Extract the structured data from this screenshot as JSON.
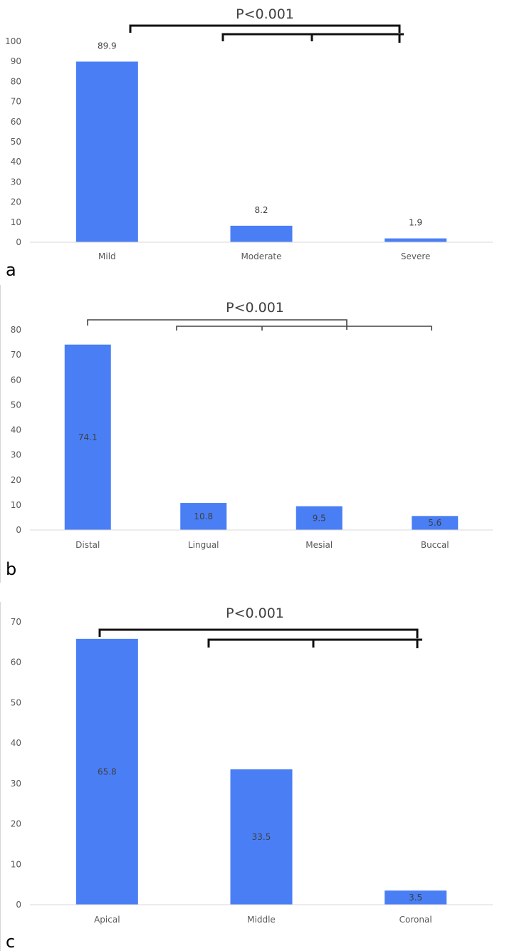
{
  "bar_color": "#4a7ef5",
  "chart_data": [
    {
      "panel_label": "a",
      "type": "bar",
      "categories": [
        "Mild",
        "Moderate",
        "Severe"
      ],
      "values": [
        89.9,
        8.2,
        1.9
      ],
      "value_labels": [
        "89.9",
        "8.2",
        "1.9"
      ],
      "value_label_position": "above",
      "ylim": [
        0,
        100
      ],
      "yticks": [
        0,
        10,
        20,
        30,
        40,
        50,
        60,
        70,
        80,
        90,
        100
      ],
      "ytick_labels": [
        "0",
        "10",
        "20",
        "30",
        "40",
        "50",
        "60",
        "70",
        "80",
        "90",
        "100"
      ],
      "grid": false,
      "annotation": "P<0.001",
      "bracket_style": "thick"
    },
    {
      "panel_label": "b",
      "type": "bar",
      "categories": [
        "Distal",
        "Lingual",
        "Mesial",
        "Buccal"
      ],
      "values": [
        74.1,
        10.8,
        9.5,
        5.6
      ],
      "value_labels": [
        "74.1",
        "10.8",
        "9.5",
        "5.6"
      ],
      "value_label_position": "inside",
      "ylim": [
        0,
        80
      ],
      "yticks": [
        0,
        10,
        20,
        30,
        40,
        50,
        60,
        70,
        80
      ],
      "ytick_labels": [
        "0",
        "10",
        "20",
        "30",
        "40",
        "50",
        "60",
        "70",
        "80"
      ],
      "grid": false,
      "annotation": "P<0.001",
      "bracket_style": "thin"
    },
    {
      "panel_label": "c",
      "type": "bar",
      "categories": [
        "Apical",
        "Middle",
        "Coronal"
      ],
      "values": [
        65.8,
        33.5,
        3.5
      ],
      "value_labels": [
        "65.8",
        "33.5",
        "3.5"
      ],
      "value_label_position": "inside",
      "ylim": [
        0,
        70
      ],
      "yticks": [
        0,
        10,
        20,
        30,
        40,
        50,
        60,
        70
      ],
      "ytick_labels": [
        "0",
        "10",
        "20",
        "30",
        "40",
        "50",
        "60",
        "70"
      ],
      "grid": false,
      "annotation": "P<0.001",
      "bracket_style": "thick"
    }
  ]
}
